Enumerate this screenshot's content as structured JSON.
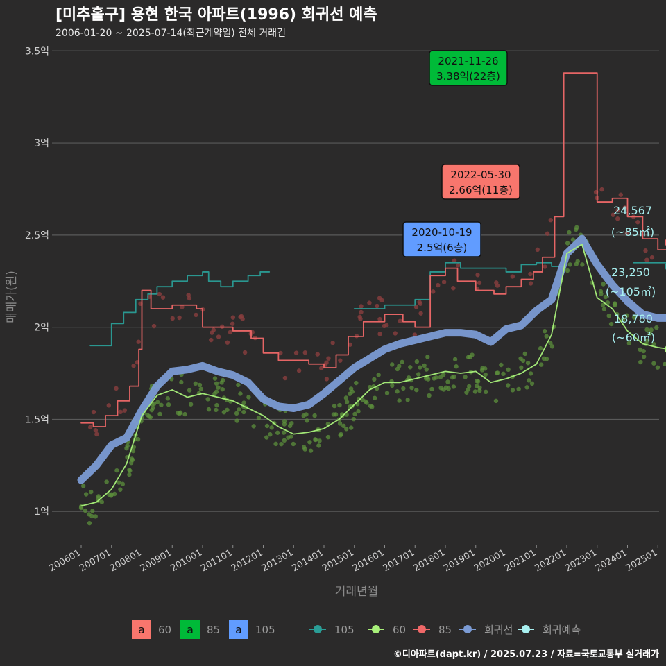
{
  "chart_data": {
    "type": "line",
    "title": "[미추홀구] 용현 한국 아파트(1996) 회귀선 예측",
    "subtitle": "2006-01-20 ~ 2025-07-14(최근계약일) 전체 거래건",
    "xlabel": "거래년월",
    "ylabel": "매매가(원)",
    "ylim": [
      0.82,
      3.55
    ],
    "y_ticks": [
      {
        "value": 1.0,
        "label": "1억"
      },
      {
        "value": 1.5,
        "label": "1.5억"
      },
      {
        "value": 2.0,
        "label": "2억"
      },
      {
        "value": 2.5,
        "label": "2.5억"
      },
      {
        "value": 3.0,
        "label": "3억"
      },
      {
        "value": 3.5,
        "label": "3.5억"
      }
    ],
    "x_ticks": [
      "200601",
      "200701",
      "200801",
      "200901",
      "201001",
      "201101",
      "201201",
      "201301",
      "201401",
      "201501",
      "201601",
      "201701",
      "201801",
      "201901",
      "202001",
      "202101",
      "202201",
      "202301",
      "202401",
      "202501"
    ],
    "grid": true,
    "legend_position": "bottom",
    "colors": {
      "s60": "#f8766d",
      "s85": "#00ba38",
      "s105": "#619cff",
      "line105": "#2a9d96",
      "line60": "#a8f07a",
      "line85": "#f06868",
      "regression": "#7b9bd4",
      "prediction": "#a8f0f0"
    },
    "legend_fill": [
      {
        "glyph": "a",
        "label": "60",
        "color": "#f8766d"
      },
      {
        "glyph": "a",
        "label": "85",
        "color": "#00ba38"
      },
      {
        "glyph": "a",
        "label": "105",
        "color": "#619cff"
      }
    ],
    "legend_lines": [
      {
        "label": "105",
        "color": "#2a9d96"
      },
      {
        "label": "60",
        "color": "#a8f07a"
      },
      {
        "label": "85",
        "color": "#f06868"
      },
      {
        "label": "회귀선",
        "color": "#7b9bd4"
      },
      {
        "label": "회귀예측",
        "color": "#a8f0f0"
      }
    ],
    "series": [
      {
        "name": "회귀선",
        "x": [
          2006.0,
          2006.5,
          2007.0,
          2007.5,
          2008.0,
          2008.5,
          2009.0,
          2009.5,
          2010.0,
          2010.5,
          2011.0,
          2011.5,
          2012.0,
          2012.5,
          2013.0,
          2013.5,
          2014.0,
          2014.5,
          2015.0,
          2015.5,
          2016.0,
          2016.5,
          2017.0,
          2017.5,
          2018.0,
          2018.5,
          2019.0,
          2019.5,
          2020.0,
          2020.5,
          2021.0,
          2021.5,
          2022.0,
          2022.5,
          2023.0,
          2023.5,
          2024.0,
          2024.5,
          2025.0,
          2025.4
        ],
        "values": [
          1.17,
          1.25,
          1.36,
          1.4,
          1.55,
          1.68,
          1.76,
          1.77,
          1.79,
          1.76,
          1.74,
          1.7,
          1.61,
          1.57,
          1.56,
          1.58,
          1.64,
          1.71,
          1.78,
          1.83,
          1.88,
          1.91,
          1.93,
          1.95,
          1.97,
          1.97,
          1.96,
          1.92,
          1.99,
          2.01,
          2.09,
          2.15,
          2.4,
          2.48,
          2.34,
          2.23,
          2.14,
          2.07,
          2.05,
          2.05
        ]
      },
      {
        "name": "60",
        "x": [
          2006.0,
          2006.5,
          2007.0,
          2007.5,
          2008.0,
          2008.5,
          2009.0,
          2009.5,
          2010.0,
          2010.5,
          2011.0,
          2011.5,
          2012.0,
          2012.5,
          2013.0,
          2013.5,
          2014.0,
          2014.5,
          2015.0,
          2015.5,
          2016.0,
          2016.5,
          2017.0,
          2017.5,
          2018.0,
          2018.5,
          2019.0,
          2019.5,
          2020.0,
          2020.5,
          2021.0,
          2021.5,
          2022.0,
          2022.5,
          2023.0,
          2023.5,
          2024.0,
          2024.5,
          2025.0,
          2025.4
        ],
        "values": [
          1.03,
          1.05,
          1.12,
          1.26,
          1.52,
          1.63,
          1.66,
          1.62,
          1.64,
          1.62,
          1.6,
          1.56,
          1.52,
          1.46,
          1.42,
          1.43,
          1.45,
          1.5,
          1.58,
          1.66,
          1.7,
          1.7,
          1.72,
          1.74,
          1.76,
          1.75,
          1.76,
          1.7,
          1.72,
          1.75,
          1.8,
          1.96,
          2.4,
          2.45,
          2.16,
          2.1,
          1.98,
          1.91,
          1.89,
          1.88
        ]
      },
      {
        "name": "85",
        "x": [
          2006.0,
          2006.4,
          2006.8,
          2007.2,
          2007.6,
          2007.9,
          2008.0,
          2008.3,
          2009.0,
          2009.8,
          2010.0,
          2010.5,
          2011.0,
          2011.6,
          2012.0,
          2012.5,
          2013.0,
          2013.5,
          2014.0,
          2014.4,
          2014.8,
          2015.3,
          2016.0,
          2016.6,
          2017.0,
          2017.5,
          2018.0,
          2018.4,
          2019.0,
          2019.6,
          2020.0,
          2020.5,
          2020.9,
          2021.2,
          2021.6,
          2021.9,
          2022.3,
          2022.6,
          2023.0,
          2023.5,
          2024.0,
          2024.5,
          2025.0,
          2025.3
        ],
        "values": [
          1.48,
          1.46,
          1.52,
          1.6,
          1.68,
          1.88,
          2.2,
          2.1,
          2.12,
          2.1,
          2.0,
          2.0,
          1.98,
          1.94,
          1.86,
          1.82,
          1.82,
          1.8,
          1.78,
          1.85,
          1.95,
          2.03,
          2.07,
          2.03,
          2.0,
          2.28,
          2.32,
          2.25,
          2.2,
          2.18,
          2.22,
          2.26,
          2.3,
          2.38,
          2.6,
          3.38,
          3.38,
          3.38,
          2.68,
          2.7,
          2.6,
          2.48,
          2.42,
          2.45
        ]
      },
      {
        "name": "105",
        "x": [
          2006.3,
          2006.6,
          2007.0,
          2007.4,
          2007.8,
          2008.2,
          2008.5,
          2009.0,
          2009.5,
          2010.0,
          2010.2,
          2010.6,
          2011.0,
          2011.5,
          2011.9,
          2012.2,
          2015.0,
          2015.5,
          2016.0,
          2016.5,
          2017.0,
          2017.5,
          2018.0,
          2018.5,
          2019.0,
          2019.5,
          2020.0,
          2020.5,
          2021.0,
          2021.5,
          2021.9,
          2024.2,
          2024.6,
          2025.0,
          2025.3
        ],
        "values": [
          1.9,
          1.9,
          2.02,
          2.08,
          2.15,
          2.18,
          2.22,
          2.25,
          2.28,
          2.3,
          2.25,
          2.22,
          2.25,
          2.28,
          2.3,
          2.3,
          2.1,
          2.1,
          2.12,
          2.12,
          2.15,
          2.3,
          2.35,
          2.32,
          2.32,
          2.32,
          2.3,
          2.34,
          2.35,
          2.33,
          2.32,
          2.35,
          2.35,
          2.35,
          2.33
        ]
      }
    ],
    "scatter_note": "",
    "annotations": [
      {
        "date": "2021-11-26",
        "price": "3.38억(22층)",
        "x": 2021.9,
        "y": 3.38,
        "color": "#00ba38"
      },
      {
        "date": "2022-05-30",
        "price": "2.66억(11층)",
        "x": 2022.4,
        "y": 2.66,
        "color": "#f8766d"
      },
      {
        "date": "2020-10-19",
        "price": "2.5억(6층)",
        "x": 2020.8,
        "y": 2.5,
        "color": "#619cff"
      }
    ],
    "end_labels": [
      {
        "value": "24,567",
        "area": "(~85㎡)",
        "x": 2025.4,
        "y": 2.46,
        "color": "#f06868"
      },
      {
        "value": "23,250",
        "area": "(~105㎡)",
        "x": 2025.4,
        "y": 2.33,
        "color": "#2a9d96"
      },
      {
        "value": "18,780",
        "area": "(~60㎡)",
        "x": 2025.4,
        "y": 1.88,
        "color": "#a8f07a"
      }
    ],
    "caption": "©디아파트(dapt.kr) / 2025.07.23 / 자료=국토교통부 실거래가"
  }
}
